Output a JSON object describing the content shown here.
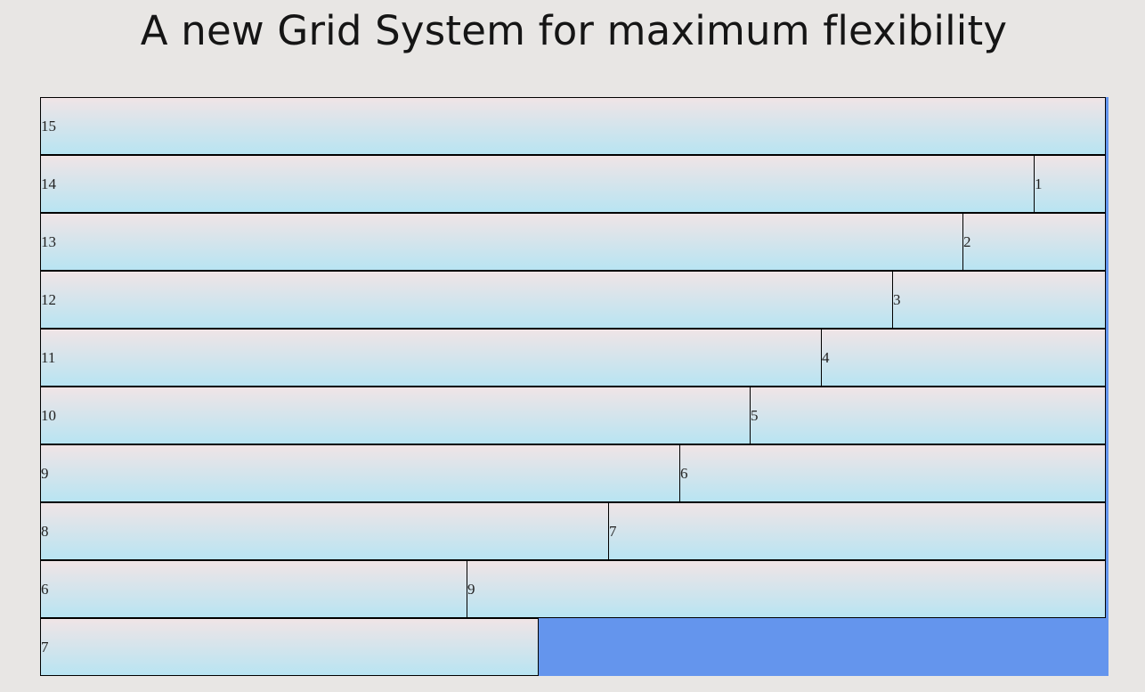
{
  "page": {
    "title": "A new Grid System for maximum flexibility"
  },
  "colors": {
    "page_background": "#e8e6e4",
    "grid_background": "#6495ed",
    "cell_gradient_top": "#f0e4e6",
    "cell_gradient_bottom": "#b8e4f2",
    "cell_border": "#000000"
  },
  "grid": {
    "total_columns": 15,
    "rows": [
      {
        "cells": [
          {
            "label": "15",
            "span": 15
          }
        ]
      },
      {
        "cells": [
          {
            "label": "14",
            "span": 14
          },
          {
            "label": "1",
            "span": 1
          }
        ]
      },
      {
        "cells": [
          {
            "label": "13",
            "span": 13
          },
          {
            "label": "2",
            "span": 2
          }
        ]
      },
      {
        "cells": [
          {
            "label": "12",
            "span": 12
          },
          {
            "label": "3",
            "span": 3
          }
        ]
      },
      {
        "cells": [
          {
            "label": "11",
            "span": 11
          },
          {
            "label": "4",
            "span": 4
          }
        ]
      },
      {
        "cells": [
          {
            "label": "10",
            "span": 10
          },
          {
            "label": "5",
            "span": 5
          }
        ]
      },
      {
        "cells": [
          {
            "label": "9",
            "span": 9
          },
          {
            "label": "6",
            "span": 6
          }
        ]
      },
      {
        "cells": [
          {
            "label": "8",
            "span": 8
          },
          {
            "label": "7",
            "span": 7
          }
        ]
      },
      {
        "cells": [
          {
            "label": "6",
            "span": 6
          },
          {
            "label": "9",
            "span": 9
          }
        ]
      },
      {
        "cells": [
          {
            "label": "7",
            "span": 7
          }
        ]
      }
    ]
  }
}
